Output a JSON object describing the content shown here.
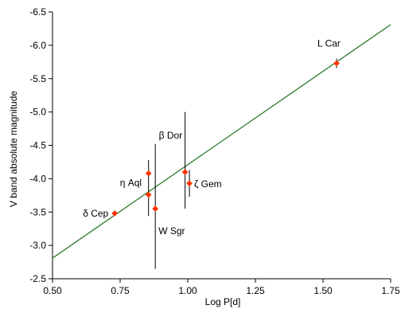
{
  "chart_data": {
    "type": "scatter",
    "title": "",
    "xlabel": "Log P[d]",
    "ylabel": "V band absolute magnitude",
    "xlim": [
      0.5,
      1.75
    ],
    "ylim": [
      -2.5,
      -6.5
    ],
    "y_axis_inverted": true,
    "x_ticks": [
      "0.50",
      "0.75",
      "1.00",
      "1.25",
      "1.50",
      "1.75"
    ],
    "y_ticks": [
      "-2.5",
      "-3.0",
      "-3.5",
      "-4.0",
      "-4.5",
      "-5.0",
      "-5.5",
      "-6.0",
      "-6.5"
    ],
    "grid": false,
    "legend": "none",
    "fit_line": {
      "x": [
        0.5,
        1.75
      ],
      "y": [
        -2.81,
        -6.31
      ],
      "color": "#2e7d32"
    },
    "point_color": "#ff3300",
    "points": [
      {
        "label": "δ Cep",
        "x": 0.73,
        "y": -3.48,
        "err_lo": -3.44,
        "err_hi": -3.52
      },
      {
        "label": "η Aql",
        "x": 0.855,
        "y": -4.08,
        "err_lo": -3.44,
        "err_hi": -4.28
      },
      {
        "label": "",
        "x": 0.855,
        "y": -3.76,
        "err_lo": -3.76,
        "err_hi": -3.76
      },
      {
        "label": "W Sgr",
        "x": 0.88,
        "y": -3.55,
        "err_lo": -2.65,
        "err_hi": -4.52
      },
      {
        "label": "β Dor",
        "x": 0.99,
        "y": -4.1,
        "err_lo": -3.55,
        "err_hi": -5.0
      },
      {
        "label": "ζ Gem",
        "x": 1.006,
        "y": -3.93,
        "err_lo": -3.73,
        "err_hi": -4.13
      },
      {
        "label": "L Car",
        "x": 1.55,
        "y": -5.73,
        "err_lo": -5.66,
        "err_hi": -5.8
      }
    ]
  }
}
